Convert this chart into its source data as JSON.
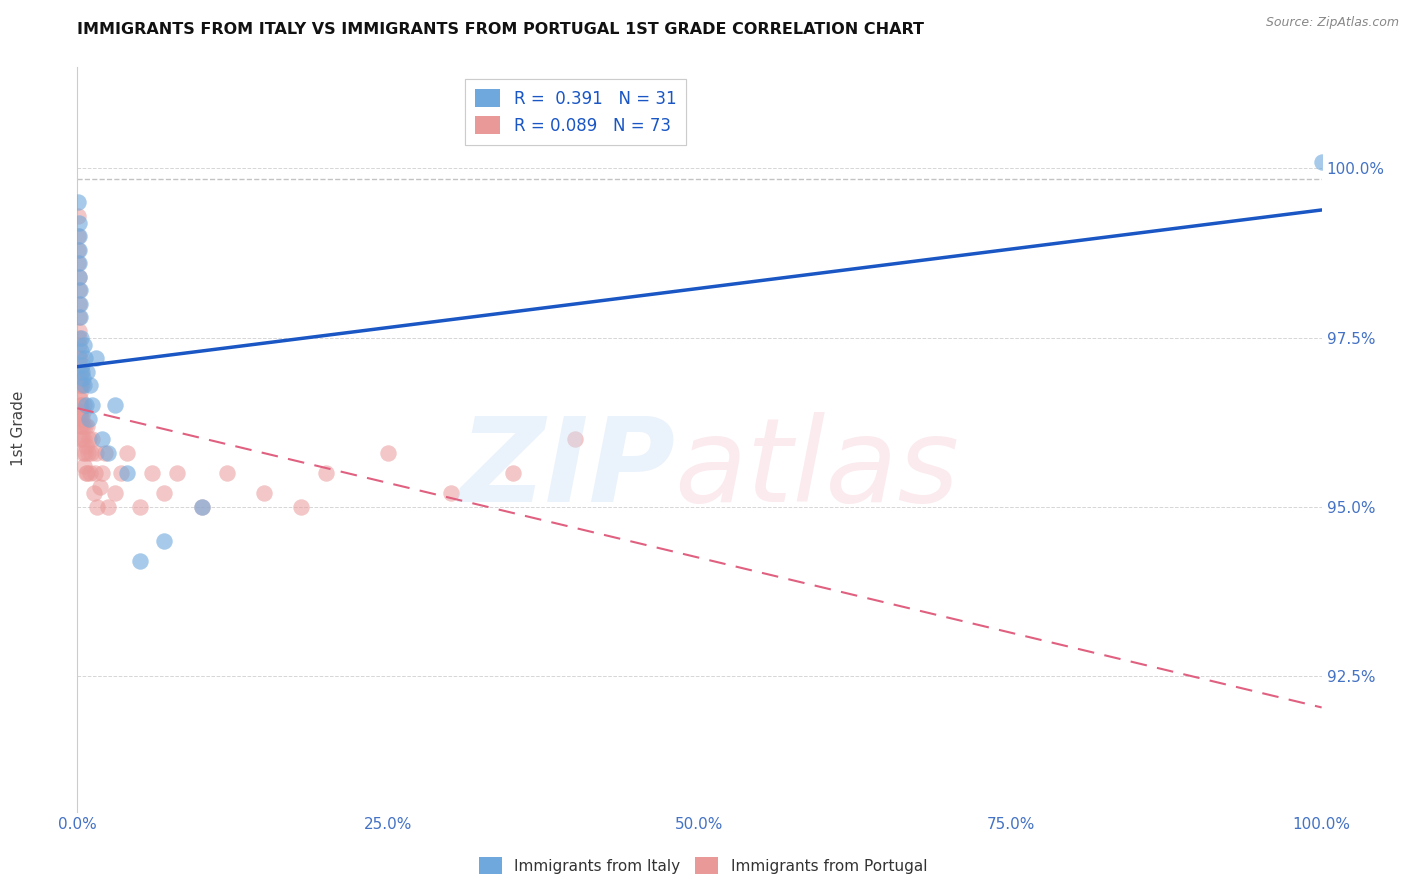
{
  "title": "IMMIGRANTS FROM ITALY VS IMMIGRANTS FROM PORTUGAL 1ST GRADE CORRELATION CHART",
  "source_text": "Source: ZipAtlas.com",
  "ylabel": "1st Grade",
  "x_min": 0.0,
  "x_max": 100.0,
  "y_min": 90.5,
  "y_max": 101.5,
  "yticks": [
    92.5,
    95.0,
    97.5,
    100.0
  ],
  "xticks": [
    0.0,
    25.0,
    50.0,
    75.0,
    100.0
  ],
  "xtick_labels": [
    "0.0%",
    "25.0%",
    "50.0%",
    "75.0%",
    "100.0%"
  ],
  "ytick_labels": [
    "92.5%",
    "95.0%",
    "97.5%",
    "100.0%"
  ],
  "legend_italy_label": "R =  0.391   N = 31",
  "legend_portugal_label": "R = 0.089   N = 73",
  "italy_color": "#6fa8dc",
  "portugal_color": "#ea9999",
  "italy_line_color": "#1a56c4",
  "portugal_line_color": "#e06080",
  "background_color": "#ffffff",
  "dashed_top_y": 99.85,
  "italy_R": 0.391,
  "portugal_R": 0.089,
  "italy_x": [
    0.08,
    0.1,
    0.12,
    0.14,
    0.15,
    0.17,
    0.2,
    0.22,
    0.25,
    0.28,
    0.3,
    0.35,
    0.4,
    0.45,
    0.5,
    0.55,
    0.6,
    0.7,
    0.8,
    0.9,
    1.0,
    1.2,
    1.5,
    2.0,
    2.5,
    3.0,
    4.0,
    5.0,
    7.0,
    10.0,
    100.0
  ],
  "italy_y": [
    99.5,
    99.2,
    99.0,
    98.8,
    98.6,
    98.4,
    98.2,
    98.0,
    97.8,
    97.5,
    97.3,
    97.1,
    97.0,
    96.9,
    97.4,
    96.8,
    97.2,
    96.5,
    97.0,
    96.3,
    96.8,
    96.5,
    97.2,
    96.0,
    95.8,
    96.5,
    95.5,
    94.2,
    94.5,
    95.0,
    100.1
  ],
  "portugal_x": [
    0.05,
    0.07,
    0.08,
    0.09,
    0.1,
    0.1,
    0.11,
    0.12,
    0.13,
    0.14,
    0.15,
    0.15,
    0.16,
    0.17,
    0.18,
    0.19,
    0.2,
    0.2,
    0.21,
    0.22,
    0.23,
    0.24,
    0.25,
    0.25,
    0.27,
    0.28,
    0.3,
    0.3,
    0.32,
    0.35,
    0.37,
    0.4,
    0.42,
    0.45,
    0.48,
    0.5,
    0.52,
    0.55,
    0.6,
    0.65,
    0.7,
    0.72,
    0.75,
    0.8,
    0.85,
    0.9,
    1.0,
    1.1,
    1.2,
    1.3,
    1.4,
    1.5,
    1.6,
    1.8,
    2.0,
    2.2,
    2.5,
    3.0,
    3.5,
    4.0,
    5.0,
    6.0,
    7.0,
    8.0,
    10.0,
    12.0,
    15.0,
    18.0,
    20.0,
    25.0,
    30.0,
    35.0,
    40.0
  ],
  "portugal_y": [
    99.3,
    99.0,
    98.8,
    98.6,
    98.4,
    98.2,
    98.0,
    97.8,
    97.6,
    97.4,
    97.2,
    97.0,
    97.5,
    96.8,
    97.2,
    96.6,
    96.4,
    96.8,
    96.2,
    96.9,
    96.5,
    96.3,
    96.7,
    96.0,
    96.8,
    96.4,
    97.0,
    96.2,
    96.5,
    96.3,
    96.8,
    96.0,
    96.4,
    95.8,
    96.2,
    96.5,
    95.6,
    96.0,
    95.8,
    96.2,
    95.5,
    95.9,
    96.2,
    95.5,
    95.8,
    96.0,
    95.5,
    95.8,
    96.0,
    95.2,
    95.5,
    95.8,
    95.0,
    95.3,
    95.5,
    95.8,
    95.0,
    95.2,
    95.5,
    95.8,
    95.0,
    95.5,
    95.2,
    95.5,
    95.0,
    95.5,
    95.2,
    95.0,
    95.5,
    95.8,
    95.2,
    95.5,
    96.0
  ]
}
